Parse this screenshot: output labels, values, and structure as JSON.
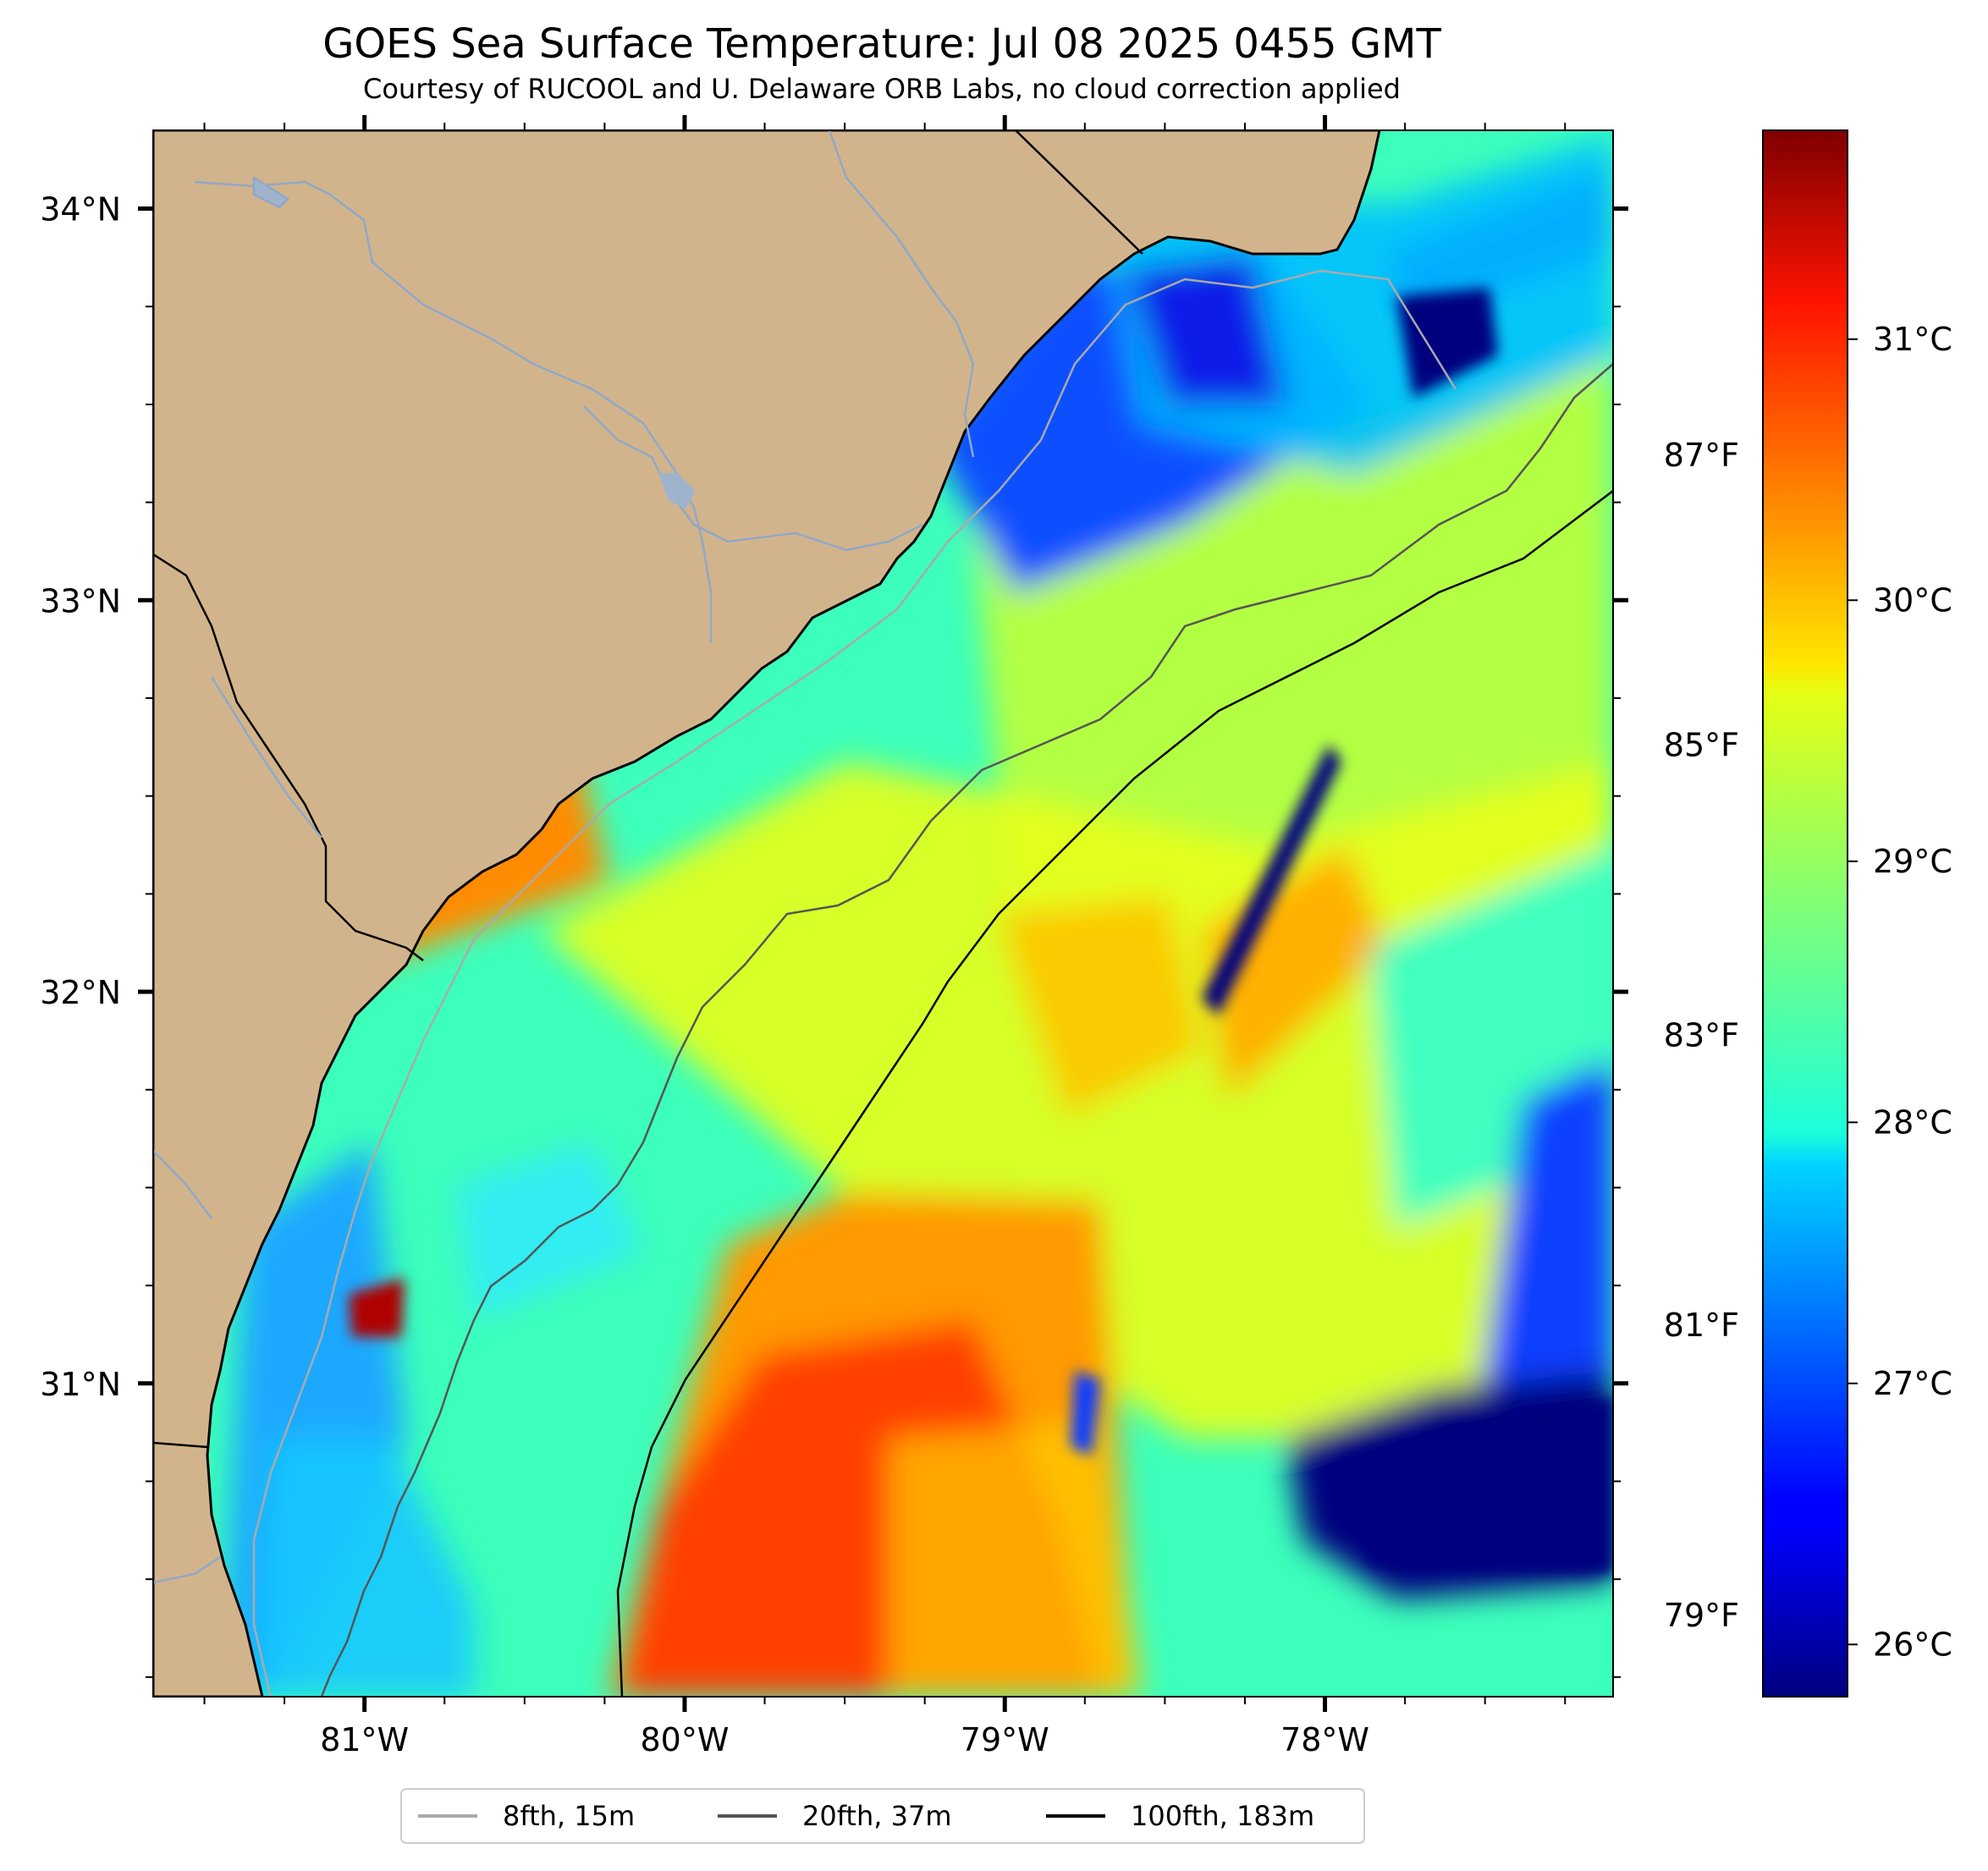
{
  "title": "GOES Sea Surface Temperature: Jul 08 2025 0455 GMT",
  "subtitle": "Courtesy of RUCOOL and U. Delaware ORB Labs, no cloud correction applied",
  "map": {
    "lon_range": [
      -81.66,
      -77.1
    ],
    "lat_range": [
      30.2,
      34.2
    ],
    "lon_ticks": [
      {
        "value": -81,
        "label": "81°W"
      },
      {
        "value": -80,
        "label": "80°W"
      },
      {
        "value": -79,
        "label": "79°W"
      },
      {
        "value": -78,
        "label": "78°W"
      }
    ],
    "lat_ticks": [
      {
        "value": 34,
        "label": "34°N"
      },
      {
        "value": 33,
        "label": "33°N"
      },
      {
        "value": 32,
        "label": "32°N"
      },
      {
        "value": 31,
        "label": "31°N"
      }
    ],
    "land_color": "#d2b48c",
    "river_color": "#8fa8c8"
  },
  "colorbar": {
    "colormap": "jet",
    "celsius_range": [
      25.8,
      31.8
    ],
    "celsius_ticks": [
      {
        "value": 26,
        "label": "26°C"
      },
      {
        "value": 27,
        "label": "27°C"
      },
      {
        "value": 28,
        "label": "28°C"
      },
      {
        "value": 29,
        "label": "29°C"
      },
      {
        "value": 30,
        "label": "30°C"
      },
      {
        "value": 31,
        "label": "31°C"
      }
    ],
    "fahrenheit_ticks": [
      {
        "value": 79,
        "label": "79°F"
      },
      {
        "value": 81,
        "label": "81°F"
      },
      {
        "value": 83,
        "label": "83°F"
      },
      {
        "value": 85,
        "label": "85°F"
      },
      {
        "value": 87,
        "label": "87°F"
      }
    ]
  },
  "legend": [
    {
      "label": "8fth, 15m",
      "color": "#aaaaaa"
    },
    {
      "label": "20fth, 37m",
      "color": "#555555"
    },
    {
      "label": "100fth, 183m",
      "color": "#000000"
    }
  ]
}
